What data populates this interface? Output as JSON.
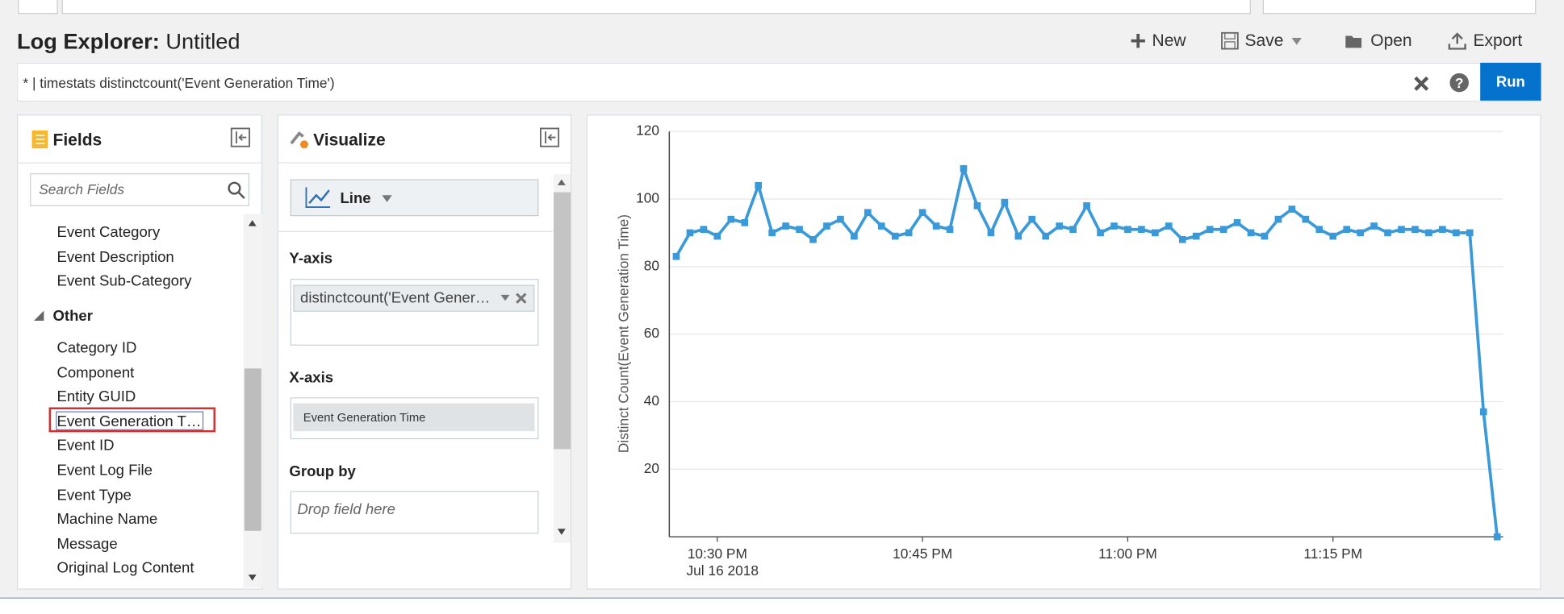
{
  "header": {
    "title": "Log Explorer:",
    "subtitle": "Untitled",
    "actions": [
      "New",
      "Save",
      "Open",
      "Export"
    ]
  },
  "query": {
    "text": "* | timestats distinctcount('Event Generation Time')",
    "run": "Run"
  },
  "fields": {
    "title": "Fields",
    "search_placeholder": "Search Fields",
    "items": [
      "Event Category",
      "Event Description",
      "Event Sub-Category"
    ],
    "group": "Other",
    "group_items": [
      "Category ID",
      "Component",
      "Entity GUID",
      "Event Generation T…",
      "Event ID",
      "Event Log File",
      "Event Type",
      "Machine Name",
      "Message",
      "Original Log Content"
    ]
  },
  "visualize": {
    "title": "Visualize",
    "chart_type": "Line",
    "y_axis_label": "Y-axis",
    "y_axis_field": "distinctcount('Event Gener…",
    "x_axis_label": "X-axis",
    "x_axis_field": "Event Generation Time",
    "group_by_label": "Group by",
    "group_by_placeholder": "Drop field here"
  },
  "chart_data": {
    "type": "line",
    "y_label": "Distinct Count(Event Generation Time)",
    "color": "#3a9ad9",
    "grid": true,
    "x": [
      "10:27 PM",
      "10:28 PM",
      "10:29 PM",
      "10:30 PM",
      "10:31 PM",
      "10:32 PM",
      "10:33 PM",
      "10:34 PM",
      "10:35 PM",
      "10:36 PM",
      "10:37 PM",
      "10:38 PM",
      "10:39 PM",
      "10:40 PM",
      "10:41 PM",
      "10:42 PM",
      "10:43 PM",
      "10:44 PM",
      "10:45 PM",
      "10:46 PM",
      "10:47 PM",
      "10:48 PM",
      "10:49 PM",
      "10:50 PM",
      "10:51 PM",
      "10:52 PM",
      "10:53 PM",
      "10:54 PM",
      "10:55 PM",
      "10:56 PM",
      "10:57 PM",
      "10:58 PM",
      "10:59 PM",
      "11:00 PM",
      "11:01 PM",
      "11:02 PM",
      "11:03 PM",
      "11:04 PM",
      "11:05 PM",
      "11:06 PM",
      "11:07 PM",
      "11:08 PM",
      "11:09 PM",
      "11:10 PM",
      "11:11 PM",
      "11:12 PM",
      "11:13 PM",
      "11:14 PM",
      "11:15 PM",
      "11:16 PM",
      "11:17 PM",
      "11:18 PM",
      "11:19 PM",
      "11:20 PM",
      "11:21 PM",
      "11:22 PM",
      "11:23 PM",
      "11:24 PM",
      "11:25 PM",
      "11:26 PM",
      "11:27 PM"
    ],
    "values": [
      83,
      90,
      91,
      89,
      94,
      93,
      104,
      90,
      92,
      91,
      88,
      92,
      94,
      89,
      96,
      92,
      89,
      90,
      96,
      92,
      91,
      109,
      98,
      90,
      99,
      89,
      94,
      89,
      92,
      91,
      98,
      90,
      92,
      91,
      91,
      90,
      92,
      88,
      89,
      91,
      91,
      93,
      90,
      89,
      94,
      97,
      94,
      91,
      89,
      91,
      90,
      92,
      90,
      91,
      91,
      90,
      91,
      90,
      90,
      37,
      0
    ],
    "xlim": [
      "10:27 PM",
      "11:27 PM"
    ],
    "xticks": [
      "10:30 PM",
      "10:45 PM",
      "11:00 PM",
      "11:15 PM"
    ],
    "x_date_label": "Jul 16 2018",
    "ylim": [
      0,
      120
    ],
    "yticks": [
      20,
      40,
      60,
      80,
      100,
      120
    ]
  }
}
